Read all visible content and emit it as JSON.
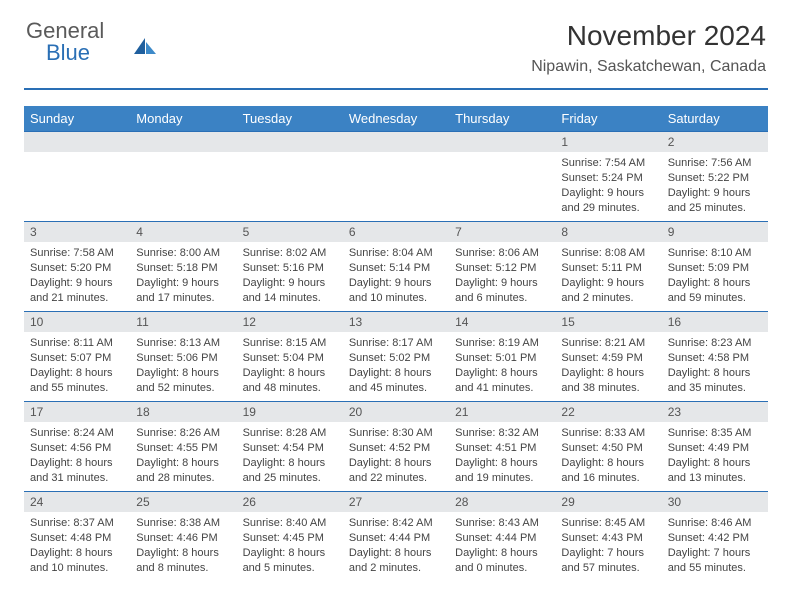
{
  "brand": {
    "part1": "General",
    "part2": "Blue"
  },
  "title": "November 2024",
  "location": "Nipawin, Saskatchewan, Canada",
  "colors": {
    "header_bg": "#3b82c4",
    "accent": "#2a6fb5",
    "daynum_bg": "#e5e7e9",
    "text": "#333333",
    "body_bg": "#ffffff"
  },
  "weekdays": [
    "Sunday",
    "Monday",
    "Tuesday",
    "Wednesday",
    "Thursday",
    "Friday",
    "Saturday"
  ],
  "weeks": [
    [
      null,
      null,
      null,
      null,
      null,
      {
        "d": "1",
        "sunrise": "7:54 AM",
        "sunset": "5:24 PM",
        "daylight": "9 hours and 29 minutes."
      },
      {
        "d": "2",
        "sunrise": "7:56 AM",
        "sunset": "5:22 PM",
        "daylight": "9 hours and 25 minutes."
      }
    ],
    [
      {
        "d": "3",
        "sunrise": "7:58 AM",
        "sunset": "5:20 PM",
        "daylight": "9 hours and 21 minutes."
      },
      {
        "d": "4",
        "sunrise": "8:00 AM",
        "sunset": "5:18 PM",
        "daylight": "9 hours and 17 minutes."
      },
      {
        "d": "5",
        "sunrise": "8:02 AM",
        "sunset": "5:16 PM",
        "daylight": "9 hours and 14 minutes."
      },
      {
        "d": "6",
        "sunrise": "8:04 AM",
        "sunset": "5:14 PM",
        "daylight": "9 hours and 10 minutes."
      },
      {
        "d": "7",
        "sunrise": "8:06 AM",
        "sunset": "5:12 PM",
        "daylight": "9 hours and 6 minutes."
      },
      {
        "d": "8",
        "sunrise": "8:08 AM",
        "sunset": "5:11 PM",
        "daylight": "9 hours and 2 minutes."
      },
      {
        "d": "9",
        "sunrise": "8:10 AM",
        "sunset": "5:09 PM",
        "daylight": "8 hours and 59 minutes."
      }
    ],
    [
      {
        "d": "10",
        "sunrise": "8:11 AM",
        "sunset": "5:07 PM",
        "daylight": "8 hours and 55 minutes."
      },
      {
        "d": "11",
        "sunrise": "8:13 AM",
        "sunset": "5:06 PM",
        "daylight": "8 hours and 52 minutes."
      },
      {
        "d": "12",
        "sunrise": "8:15 AM",
        "sunset": "5:04 PM",
        "daylight": "8 hours and 48 minutes."
      },
      {
        "d": "13",
        "sunrise": "8:17 AM",
        "sunset": "5:02 PM",
        "daylight": "8 hours and 45 minutes."
      },
      {
        "d": "14",
        "sunrise": "8:19 AM",
        "sunset": "5:01 PM",
        "daylight": "8 hours and 41 minutes."
      },
      {
        "d": "15",
        "sunrise": "8:21 AM",
        "sunset": "4:59 PM",
        "daylight": "8 hours and 38 minutes."
      },
      {
        "d": "16",
        "sunrise": "8:23 AM",
        "sunset": "4:58 PM",
        "daylight": "8 hours and 35 minutes."
      }
    ],
    [
      {
        "d": "17",
        "sunrise": "8:24 AM",
        "sunset": "4:56 PM",
        "daylight": "8 hours and 31 minutes."
      },
      {
        "d": "18",
        "sunrise": "8:26 AM",
        "sunset": "4:55 PM",
        "daylight": "8 hours and 28 minutes."
      },
      {
        "d": "19",
        "sunrise": "8:28 AM",
        "sunset": "4:54 PM",
        "daylight": "8 hours and 25 minutes."
      },
      {
        "d": "20",
        "sunrise": "8:30 AM",
        "sunset": "4:52 PM",
        "daylight": "8 hours and 22 minutes."
      },
      {
        "d": "21",
        "sunrise": "8:32 AM",
        "sunset": "4:51 PM",
        "daylight": "8 hours and 19 minutes."
      },
      {
        "d": "22",
        "sunrise": "8:33 AM",
        "sunset": "4:50 PM",
        "daylight": "8 hours and 16 minutes."
      },
      {
        "d": "23",
        "sunrise": "8:35 AM",
        "sunset": "4:49 PM",
        "daylight": "8 hours and 13 minutes."
      }
    ],
    [
      {
        "d": "24",
        "sunrise": "8:37 AM",
        "sunset": "4:48 PM",
        "daylight": "8 hours and 10 minutes."
      },
      {
        "d": "25",
        "sunrise": "8:38 AM",
        "sunset": "4:46 PM",
        "daylight": "8 hours and 8 minutes."
      },
      {
        "d": "26",
        "sunrise": "8:40 AM",
        "sunset": "4:45 PM",
        "daylight": "8 hours and 5 minutes."
      },
      {
        "d": "27",
        "sunrise": "8:42 AM",
        "sunset": "4:44 PM",
        "daylight": "8 hours and 2 minutes."
      },
      {
        "d": "28",
        "sunrise": "8:43 AM",
        "sunset": "4:44 PM",
        "daylight": "8 hours and 0 minutes."
      },
      {
        "d": "29",
        "sunrise": "8:45 AM",
        "sunset": "4:43 PM",
        "daylight": "7 hours and 57 minutes."
      },
      {
        "d": "30",
        "sunrise": "8:46 AM",
        "sunset": "4:42 PM",
        "daylight": "7 hours and 55 minutes."
      }
    ]
  ],
  "labels": {
    "sunrise": "Sunrise:",
    "sunset": "Sunset:",
    "daylight": "Daylight:"
  }
}
